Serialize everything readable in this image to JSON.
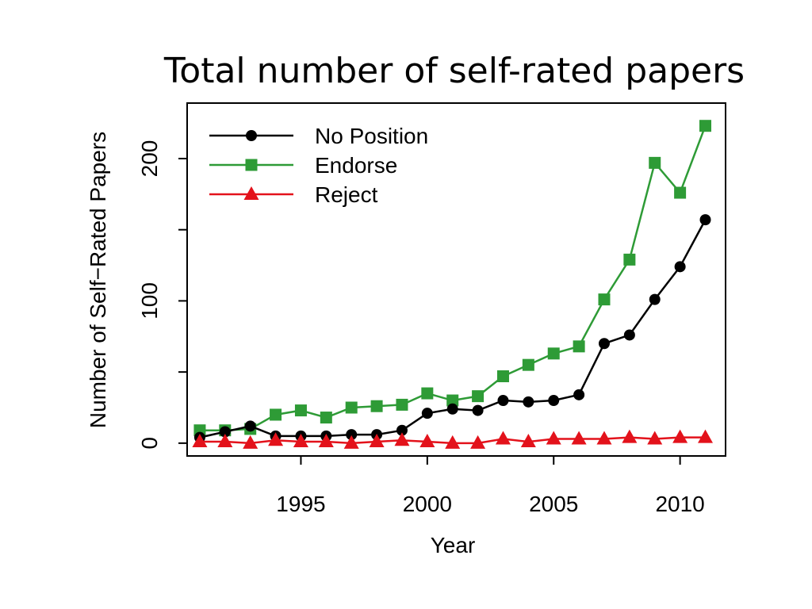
{
  "chart_data": {
    "type": "line",
    "title": "Total number of self-rated papers",
    "xlabel": "Year",
    "ylabel": "Number of Self−Rated Papers",
    "xlim": [
      1990.5,
      2011.8
    ],
    "ylim": [
      -9,
      239
    ],
    "x_ticks": [
      1995,
      2000,
      2005,
      2010
    ],
    "y_ticks": [
      0,
      50,
      100,
      150,
      200
    ],
    "y_tick_labels": [
      "0",
      "",
      "100",
      "",
      "200"
    ],
    "legend_position": "top-left",
    "x": [
      1991,
      1992,
      1993,
      1994,
      1995,
      1996,
      1997,
      1998,
      1999,
      2000,
      2001,
      2002,
      2003,
      2004,
      2005,
      2006,
      2007,
      2008,
      2009,
      2010,
      2011
    ],
    "series": [
      {
        "name": "No Position",
        "color": "#000000",
        "marker": "circle",
        "values": [
          4,
          8,
          12,
          5,
          5,
          5,
          6,
          6,
          9,
          21,
          24,
          23,
          30,
          29,
          30,
          34,
          70,
          76,
          101,
          124,
          157
        ]
      },
      {
        "name": "Endorse",
        "color": "#2e9b36",
        "marker": "square",
        "values": [
          9,
          9,
          10,
          20,
          23,
          18,
          25,
          26,
          27,
          35,
          30,
          33,
          47,
          55,
          63,
          68,
          101,
          129,
          197,
          176,
          223
        ]
      },
      {
        "name": "Reject",
        "color": "#e3121b",
        "marker": "triangle",
        "values": [
          1,
          1,
          0,
          2,
          1,
          1,
          0,
          1,
          2,
          1,
          0,
          0,
          3,
          1,
          3,
          3,
          3,
          4,
          3,
          4,
          4
        ]
      }
    ]
  }
}
